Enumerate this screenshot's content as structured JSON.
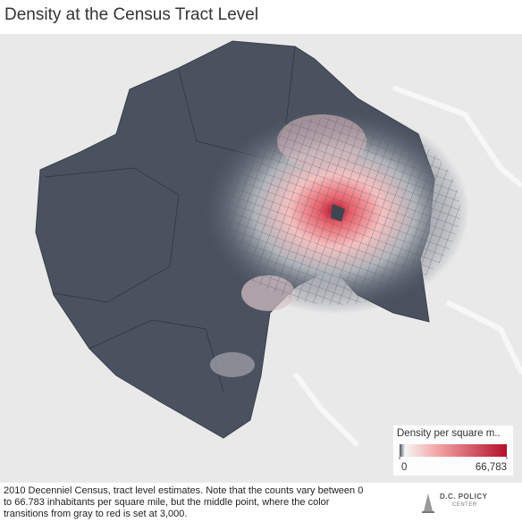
{
  "title": "Density at the Census Tract Level",
  "legend": {
    "title": "Density per square m..",
    "min": 0,
    "max": {
      "value": 66783,
      "label": "66,783"
    }
  },
  "caption": [
    "2010 Decenniel Census, tract level estimates. Note that the counts vary between 0",
    "to 66.783 inhabitants per square mile, but the middle point, where the color",
    "transitions from gray to red is set at 3,000."
  ],
  "logo": {
    "name": "D.C. POLICY",
    "sub": "CENTER"
  }
}
